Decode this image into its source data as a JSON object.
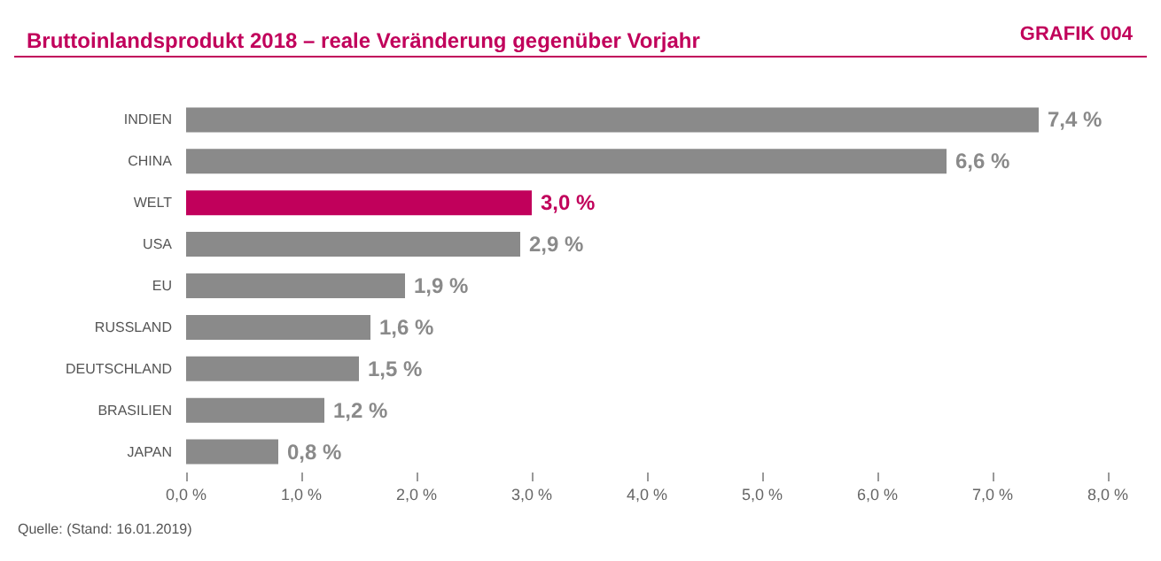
{
  "chart_data": {
    "type": "bar",
    "orientation": "horizontal",
    "title": "Bruttoinlandsprodukt 2018 – reale Veränderung gegenüber Vorjahr",
    "annotations": [
      "GRAFIK 004",
      "Quelle: (Stand: 16.01.2019)"
    ],
    "categories": [
      "INDIEN",
      "CHINA",
      "WELT",
      "USA",
      "EU",
      "RUSSLAND",
      "DEUTSCHLAND",
      "BRASILIEN",
      "JAPAN"
    ],
    "values": [
      7.4,
      6.6,
      3.0,
      2.9,
      1.9,
      1.6,
      1.5,
      1.2,
      0.8
    ],
    "colors": [
      "#8a8a8a",
      "#8a8a8a",
      "#c1005b",
      "#8a8a8a",
      "#8a8a8a",
      "#8a8a8a",
      "#8a8a8a",
      "#8a8a8a",
      "#8a8a8a"
    ],
    "value_labels": [
      "7,4 %",
      "6,6 %",
      "3,0 %",
      "2,9 %",
      "1,9 %",
      "1,6 %",
      "1,5 %",
      "1,2 %",
      "0,8 %"
    ],
    "xlim": [
      0,
      8
    ],
    "xticks": [
      {
        "value": 0,
        "label": "0,0 %"
      },
      {
        "value": 1,
        "label": "1,0 %"
      },
      {
        "value": 2,
        "label": "2,0 %"
      },
      {
        "value": 3,
        "label": "3,0 %"
      },
      {
        "value": 4,
        "label": "4,0 %"
      },
      {
        "value": 5,
        "label": "5,0 %"
      },
      {
        "value": 6,
        "label": "6,0 %"
      },
      {
        "value": 7,
        "label": "7,0 %"
      },
      {
        "value": 8,
        "label": "8,0 %"
      }
    ],
    "grid": false
  }
}
